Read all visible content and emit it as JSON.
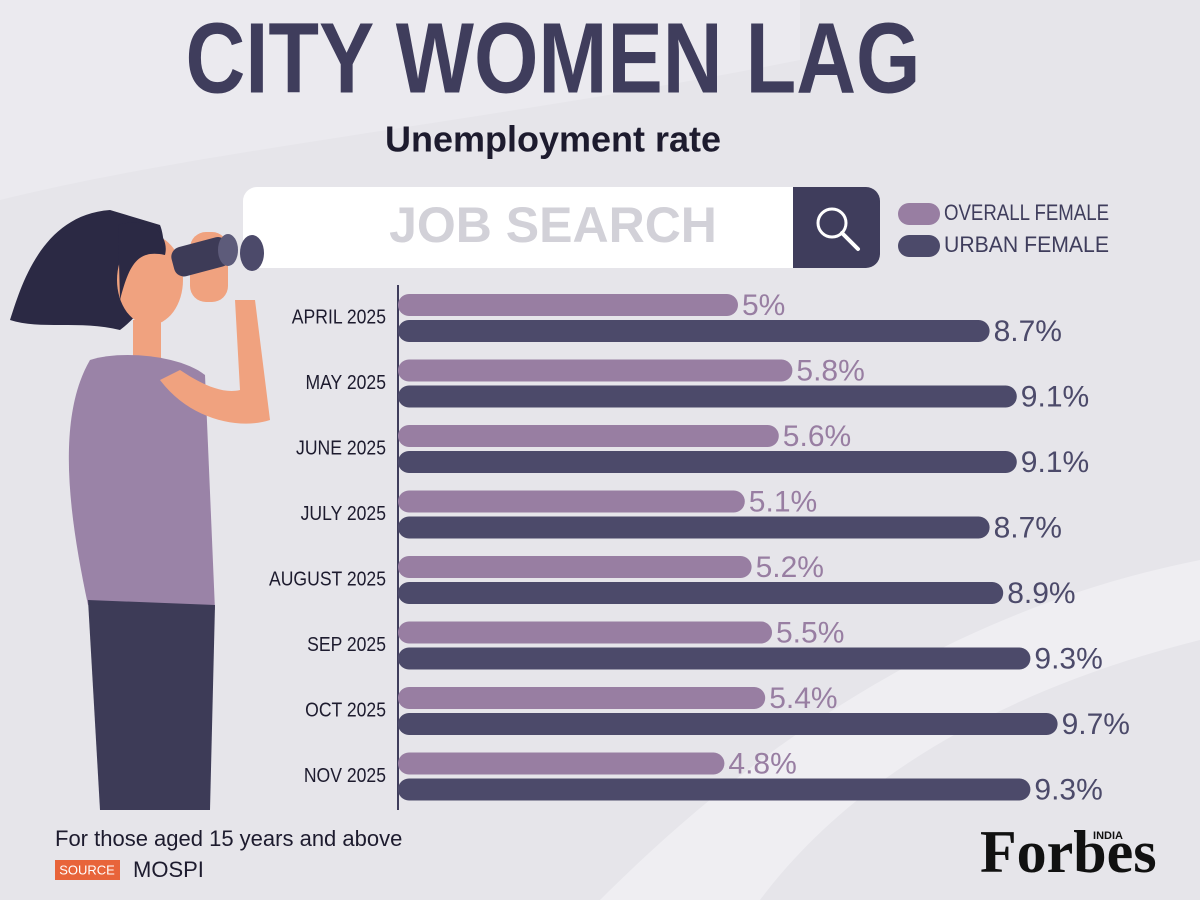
{
  "chart_data": {
    "type": "bar",
    "orientation": "horizontal",
    "title": "CITY WOMEN LAG",
    "subtitle": "Unemployment rate",
    "search_text": "JOB SEARCH",
    "categories": [
      "APRIL 2025",
      "MAY 2025",
      "JUNE 2025",
      "JULY 2025",
      "AUGUST 2025",
      "SEP 2025",
      "OCT 2025",
      "NOV 2025"
    ],
    "series": [
      {
        "name": "OVERALL FEMALE",
        "color": "#987ea2",
        "values": [
          5,
          5.8,
          5.6,
          5.1,
          5.2,
          5.5,
          5.4,
          4.8
        ],
        "value_labels": [
          "5%",
          "5.8%",
          "5.6%",
          "5.1%",
          "5.2%",
          "5.5%",
          "5.4%",
          "4.8%"
        ]
      },
      {
        "name": "URBAN FEMALE",
        "color": "#4c4a6a",
        "values": [
          8.7,
          9.1,
          9.1,
          8.7,
          8.9,
          9.3,
          9.7,
          9.3
        ],
        "value_labels": [
          "8.7%",
          "9.1%",
          "9.1%",
          "8.7%",
          "8.9%",
          "9.3%",
          "9.7%",
          "9.3%"
        ]
      }
    ],
    "legend": "top-right",
    "footnote": "For those aged 15 years and above",
    "source_tag": "SOURCE",
    "source": "MOSPI",
    "logo": "Forbes",
    "logo_edition": "INDIA"
  }
}
